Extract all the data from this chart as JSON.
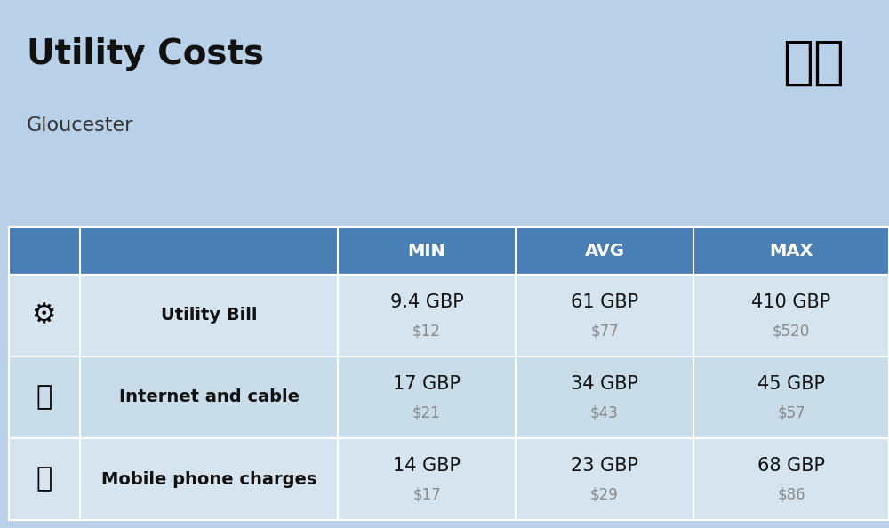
{
  "title": "Utility Costs",
  "subtitle": "Gloucester",
  "background_color": "#b8d0e8",
  "header_color": "#4a7fb5",
  "header_text_color": "#ffffff",
  "row_colors": [
    "#d6e4f0",
    "#c8dcea"
  ],
  "cell_border_color": "#ffffff",
  "columns": [
    "",
    "",
    "MIN",
    "AVG",
    "MAX"
  ],
  "rows": [
    {
      "label": "Utility Bill",
      "min_gbp": "9.4 GBP",
      "min_usd": "$12",
      "avg_gbp": "61 GBP",
      "avg_usd": "$77",
      "max_gbp": "410 GBP",
      "max_usd": "$520"
    },
    {
      "label": "Internet and cable",
      "min_gbp": "17 GBP",
      "min_usd": "$21",
      "avg_gbp": "34 GBP",
      "avg_usd": "$43",
      "max_gbp": "45 GBP",
      "max_usd": "$57"
    },
    {
      "label": "Mobile phone charges",
      "min_gbp": "14 GBP",
      "min_usd": "$17",
      "avg_gbp": "23 GBP",
      "avg_usd": "$29",
      "max_gbp": "68 GBP",
      "max_usd": "$86"
    }
  ],
  "title_fontsize": 28,
  "subtitle_fontsize": 16,
  "header_fontsize": 14,
  "label_fontsize": 14,
  "value_fontsize": 15,
  "usd_fontsize": 12,
  "usd_color": "#888888",
  "label_color": "#111111",
  "value_color": "#111111"
}
